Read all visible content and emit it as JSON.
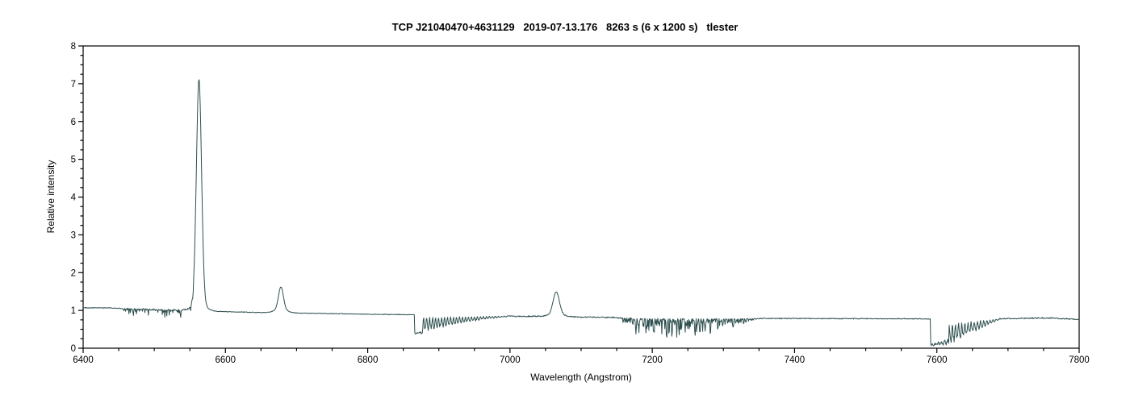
{
  "page": {
    "background": "#ffffff"
  },
  "chart_data": {
    "type": "line",
    "title": "TCP J21040470+4631129   2019-07-13.176   8263 s (6 x 1200 s)   tlester",
    "xlabel": "Wavelength (Angstrom)",
    "ylabel": "Relative intensity",
    "xlim": [
      6400,
      7800
    ],
    "ylim": [
      0,
      8
    ],
    "xticks": [
      6400,
      6600,
      6800,
      7000,
      7200,
      7400,
      7600,
      7800
    ],
    "x_minor_step": 50,
    "yticks": [
      0,
      1,
      2,
      3,
      4,
      5,
      6,
      7,
      8
    ],
    "y_minor_step": 0.25,
    "grid": false,
    "legend": "none",
    "line_color": "#2e4f4f",
    "axis_color": "#000000",
    "series_name": "spectrum",
    "sample_step": 0.7,
    "seed": 20190713,
    "continuum": [
      [
        6400,
        1.07
      ],
      [
        6440,
        1.065
      ],
      [
        6470,
        1.035
      ],
      [
        6520,
        1.01
      ],
      [
        6560,
        1.0
      ],
      [
        6600,
        0.965
      ],
      [
        6650,
        0.945
      ],
      [
        6700,
        0.93
      ],
      [
        6750,
        0.915
      ],
      [
        6800,
        0.9
      ],
      [
        6860,
        0.885
      ],
      [
        6920,
        0.865
      ],
      [
        6990,
        0.85
      ],
      [
        7050,
        0.835
      ],
      [
        7100,
        0.825
      ],
      [
        7150,
        0.815
      ],
      [
        7200,
        0.805
      ],
      [
        7300,
        0.79
      ],
      [
        7400,
        0.787
      ],
      [
        7500,
        0.78
      ],
      [
        7590,
        0.775
      ],
      [
        7650,
        0.775
      ],
      [
        7700,
        0.785
      ],
      [
        7760,
        0.8
      ],
      [
        7790,
        0.77
      ],
      [
        7800,
        0.758
      ]
    ],
    "emission_lines": [
      {
        "center": 6562.8,
        "peak": 6.93,
        "sigma": 3.6,
        "wing_amp": 0.2,
        "wing_sigma": 8.5
      },
      {
        "center": 6678,
        "peak": 1.52,
        "sigma": 3.4,
        "wing_amp": 0.1,
        "wing_sigma": 8
      },
      {
        "center": 7065,
        "peak": 1.42,
        "sigma": 4.2,
        "wing_amp": 0.08,
        "wing_sigma": 10
      }
    ],
    "absorption_bands": [
      {
        "name": "band-6866",
        "type": "comb",
        "start": 6866,
        "end": 6995,
        "spacing": 4.2,
        "edge_until": 6877,
        "edge_min": 0.38,
        "env_start": 0.42,
        "env_end": 0.02
      },
      {
        "name": "band-7155",
        "type": "random",
        "start": 7150,
        "end": 7355,
        "spacing": 3.6,
        "max_depth": 0.52,
        "full_from": 7180,
        "full_to": 7270
      },
      {
        "name": "band-7591",
        "type": "deep-comb",
        "start": 7591,
        "end": 7688,
        "spacing": 4.4,
        "deep_until": 7617,
        "deep_level": 0.05,
        "env_start": 0.6,
        "env_end": 0.03
      }
    ],
    "noise": {
      "base": 0.011,
      "regions": [
        {
          "start": 6455,
          "end": 6565,
          "amp": 0.03,
          "dip_prob": 0.22,
          "dip_depth": 0.18
        },
        {
          "start": 6995,
          "end": 7150,
          "amp": 0.02
        },
        {
          "start": 7355,
          "end": 7590,
          "amp": 0.016
        },
        {
          "start": 7688,
          "end": 7800,
          "amp": 0.02
        }
      ]
    }
  }
}
